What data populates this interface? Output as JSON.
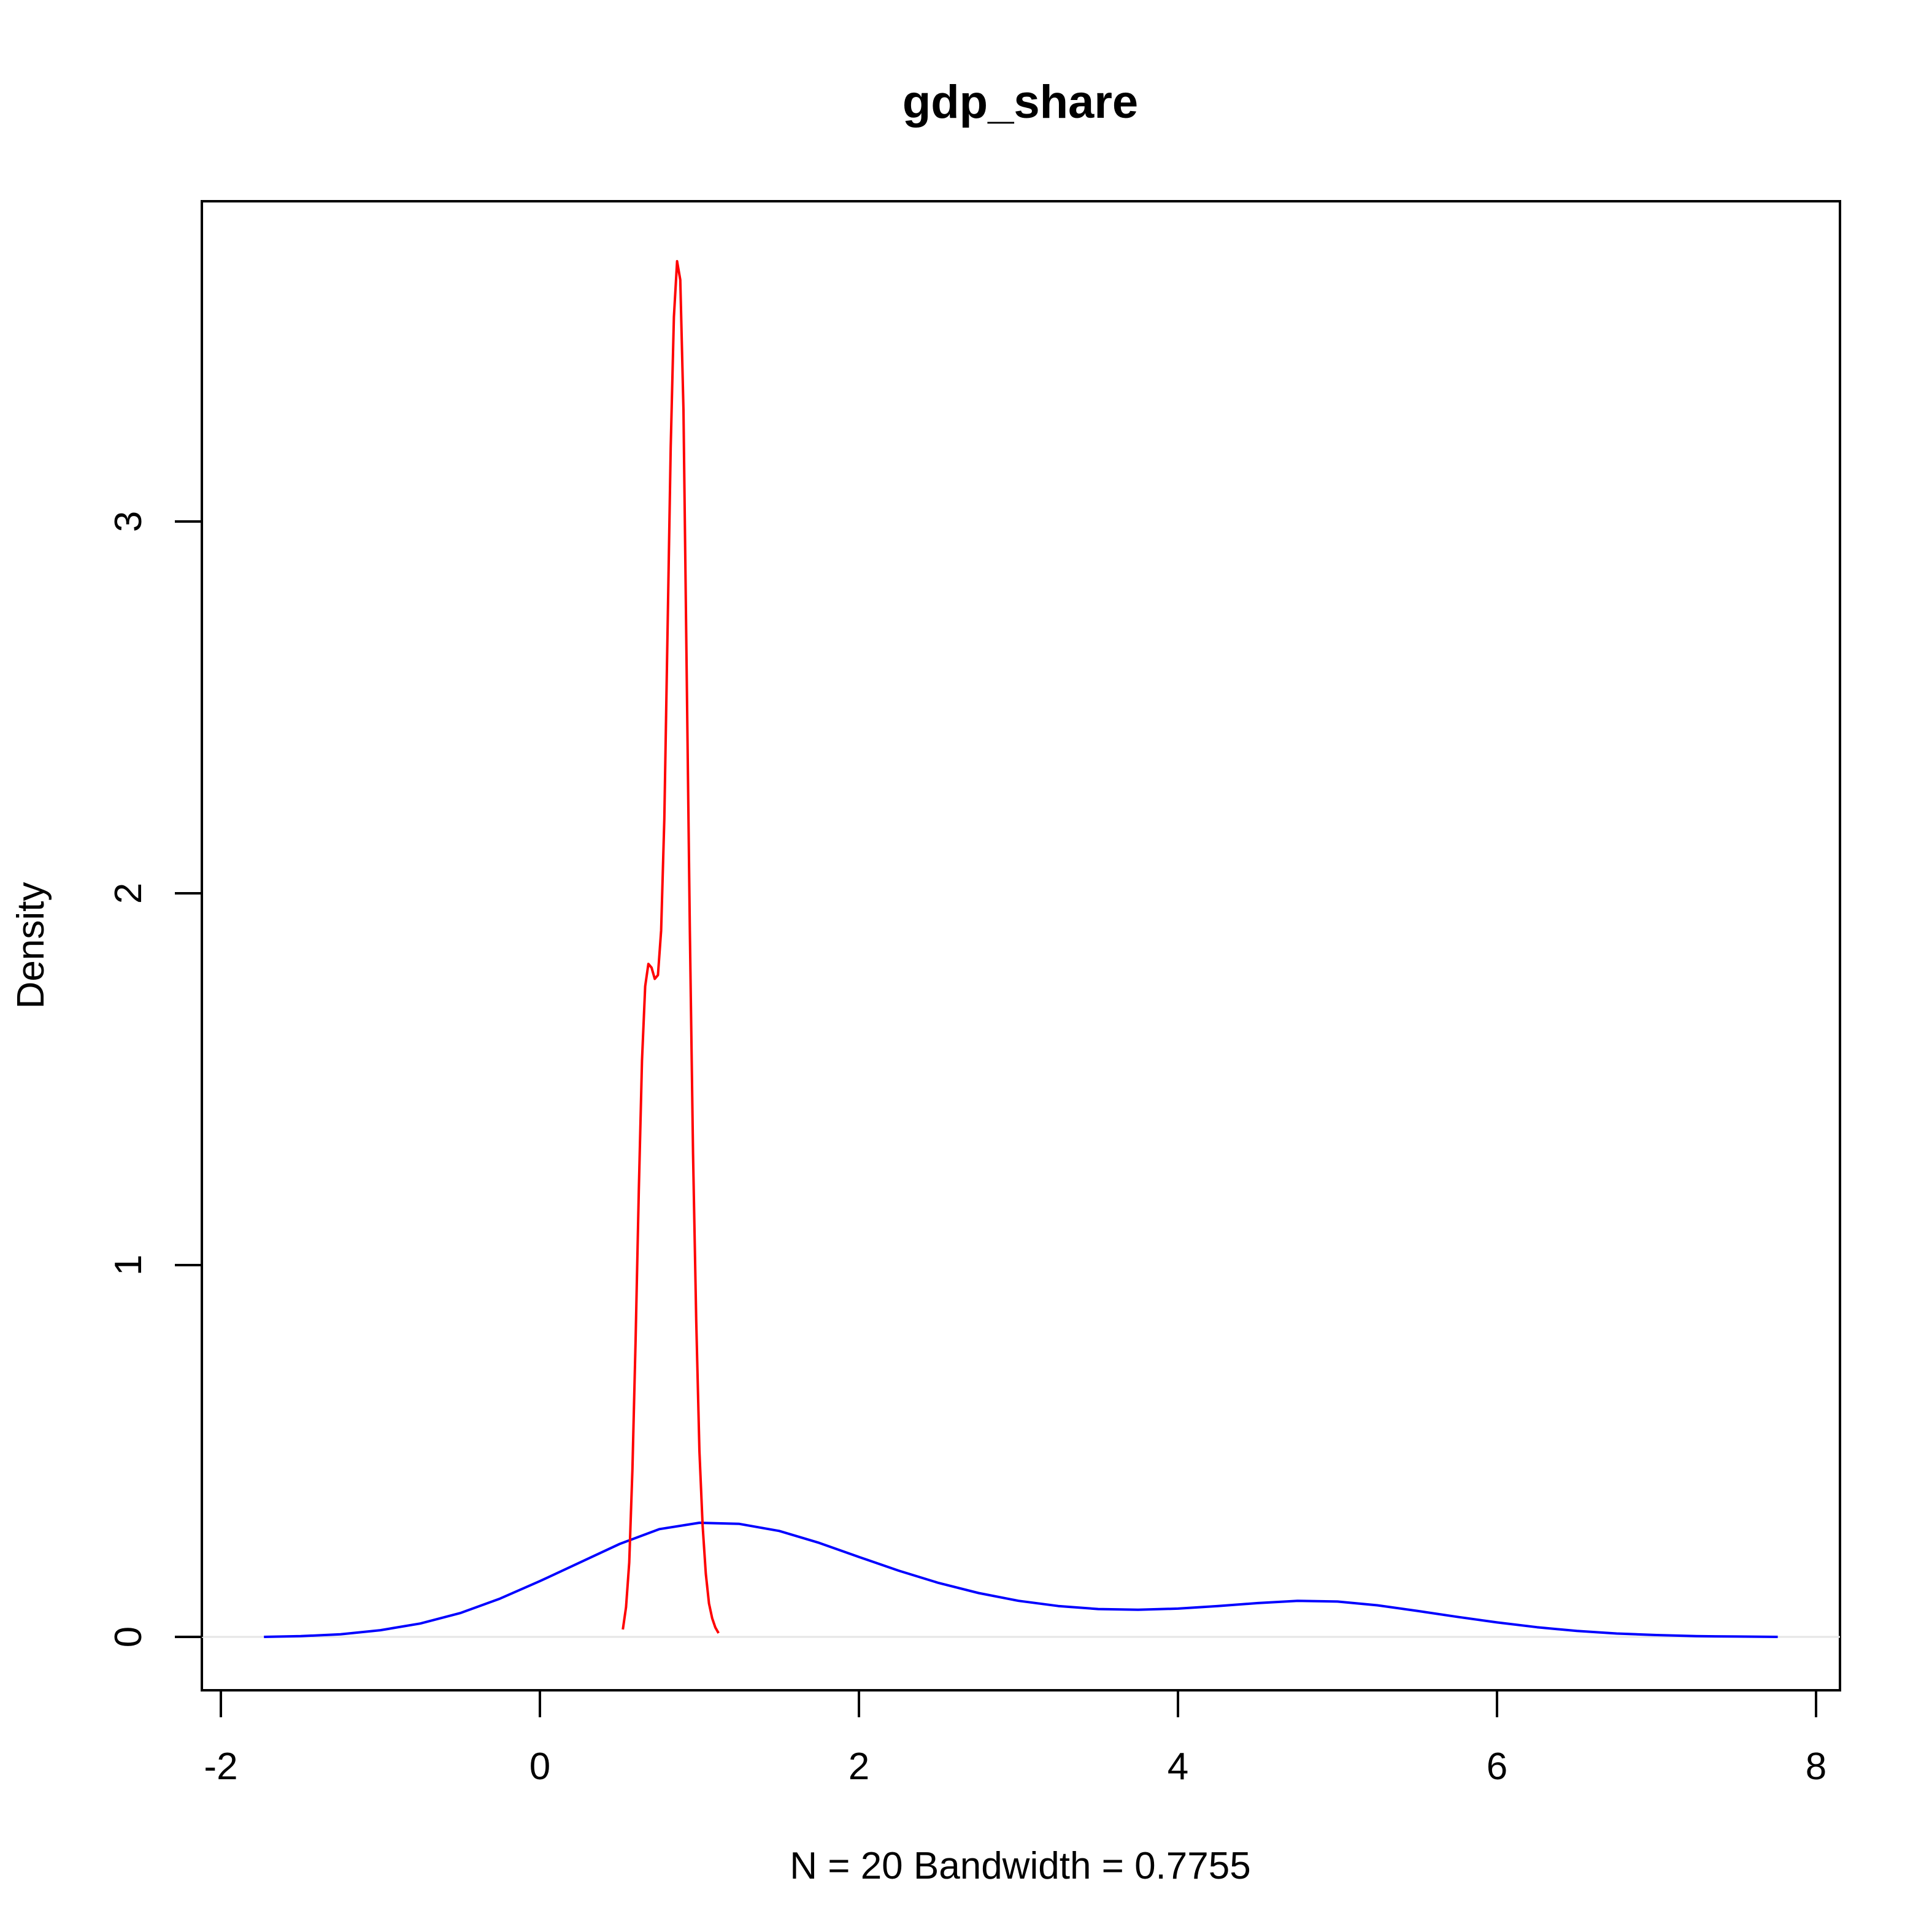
{
  "chart_data": {
    "type": "line",
    "title": "gdp_share",
    "xlabel": "N = 20   Bandwidth = 0.7755",
    "ylabel": "Density",
    "xlim": [
      -2,
      8
    ],
    "ylim": [
      -0.15,
      3.86
    ],
    "x_ticks": [
      -2,
      0,
      2,
      4,
      6,
      8
    ],
    "x_tick_labels": [
      "-2",
      "0",
      "2",
      "4",
      "6",
      "8"
    ],
    "y_ticks": [
      0,
      1,
      2,
      3
    ],
    "y_tick_labels": [
      "0",
      "1",
      "2",
      "3"
    ],
    "grid": false,
    "series": [
      {
        "color": "#0000ff",
        "x": [
          -1.73,
          -1.5,
          -1.25,
          -1.0,
          -0.75,
          -0.5,
          -0.25,
          0.0,
          0.25,
          0.5,
          0.75,
          1.0,
          1.25,
          1.5,
          1.75,
          2.0,
          2.25,
          2.5,
          2.75,
          3.0,
          3.25,
          3.5,
          3.75,
          4.0,
          4.25,
          4.5,
          4.75,
          5.0,
          5.25,
          5.5,
          5.75,
          6.0,
          6.25,
          6.5,
          6.75,
          7.0,
          7.25,
          7.5,
          7.76
        ],
        "y": [
          0.0,
          0.002,
          0.007,
          0.018,
          0.036,
          0.064,
          0.103,
          0.15,
          0.2,
          0.25,
          0.29,
          0.307,
          0.304,
          0.285,
          0.253,
          0.215,
          0.178,
          0.145,
          0.118,
          0.097,
          0.083,
          0.075,
          0.073,
          0.076,
          0.083,
          0.091,
          0.097,
          0.095,
          0.085,
          0.07,
          0.054,
          0.039,
          0.026,
          0.016,
          0.009,
          0.005,
          0.002,
          0.001,
          0.0
        ]
      },
      {
        "color": "#ff0000",
        "x": [
          0.52,
          0.54,
          0.56,
          0.58,
          0.6,
          0.62,
          0.64,
          0.66,
          0.68,
          0.7,
          0.72,
          0.74,
          0.76,
          0.78,
          0.8,
          0.82,
          0.84,
          0.86,
          0.88,
          0.9,
          0.92,
          0.94,
          0.96,
          0.98,
          1.0,
          1.02,
          1.04,
          1.06,
          1.08,
          1.1,
          1.12
        ],
        "y": [
          0.02,
          0.08,
          0.2,
          0.45,
          0.8,
          1.2,
          1.55,
          1.75,
          1.81,
          1.8,
          1.77,
          1.78,
          1.9,
          2.2,
          2.7,
          3.2,
          3.55,
          3.7,
          3.65,
          3.3,
          2.6,
          1.9,
          1.3,
          0.85,
          0.5,
          0.3,
          0.17,
          0.09,
          0.05,
          0.025,
          0.01
        ]
      }
    ]
  }
}
